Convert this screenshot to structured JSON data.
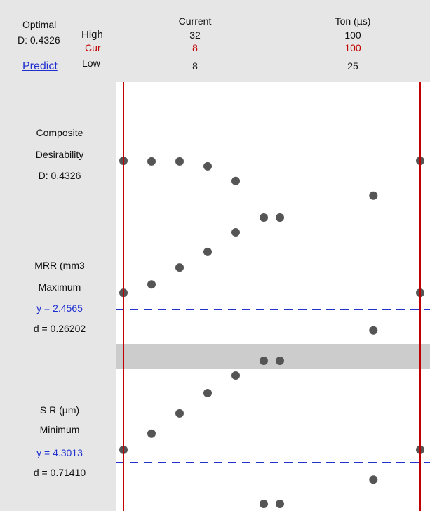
{
  "header": {
    "optimal_label": "Optimal",
    "d_value": "D: 0.4326",
    "predict_link": "Predict",
    "row_high": "High",
    "row_cur": "Cur",
    "row_low": "Low"
  },
  "factors": [
    {
      "name": "Current",
      "high": "32",
      "cur": "8",
      "low": "8"
    },
    {
      "name": "Ton (µs)",
      "high": "100",
      "cur": "100",
      "low": "25"
    }
  ],
  "responses": [
    {
      "line1": "Composite",
      "line2": "Desirability",
      "line3": "D: 0.4326"
    },
    {
      "line1": "MRR (mm3",
      "line2": "Maximum",
      "y": "y = 2.4565",
      "d": "d = 0.26202"
    },
    {
      "line1": "S R (µm)",
      "line2": "Minimum",
      "y": "y = 4.3013",
      "d": "d = 0.71410"
    }
  ],
  "colors": {
    "current_setting_line": "#c00000",
    "target_line": "#2233cc",
    "point": "#555555",
    "shaded_band": "#cccccc"
  },
  "chart_data": {
    "type": "scatter",
    "note_levels": "factor levels evaluated per panel",
    "panels": [
      {
        "response": "Composite Desirability",
        "series": [
          {
            "factor": "Current",
            "x": [
              8,
              12,
              16,
              20,
              24,
              28
            ],
            "y": [
              0.4326,
              0.43,
              0.43,
              0.41,
              0.35,
              0.2
            ]
          },
          {
            "factor": "Ton (µs)",
            "x": [
              25,
              75,
              100
            ],
            "y": [
              0.2,
              0.29,
              0.4326
            ]
          }
        ]
      },
      {
        "response": "MRR (mm3",
        "series": [
          {
            "factor": "Current",
            "x": [
              8,
              12,
              16,
              20,
              24,
              28
            ],
            "y": [
              2.4565,
              2.58,
              2.83,
              3.06,
              3.35,
              1.45
            ]
          },
          {
            "factor": "Ton (µs)",
            "x": [
              25,
              75,
              100
            ],
            "y": [
              1.45,
              1.9,
              2.4565
            ]
          }
        ]
      },
      {
        "response": "S R (µm)",
        "series": [
          {
            "factor": "Current",
            "x": [
              8,
              12,
              16,
              20,
              24,
              28
            ],
            "y": [
              4.3013,
              4.42,
              4.57,
              4.72,
              4.85,
              3.9
            ]
          },
          {
            "factor": "Ton (µs)",
            "x": [
              25,
              75,
              100
            ],
            "y": [
              3.9,
              4.08,
              4.3013
            ]
          }
        ]
      }
    ]
  }
}
